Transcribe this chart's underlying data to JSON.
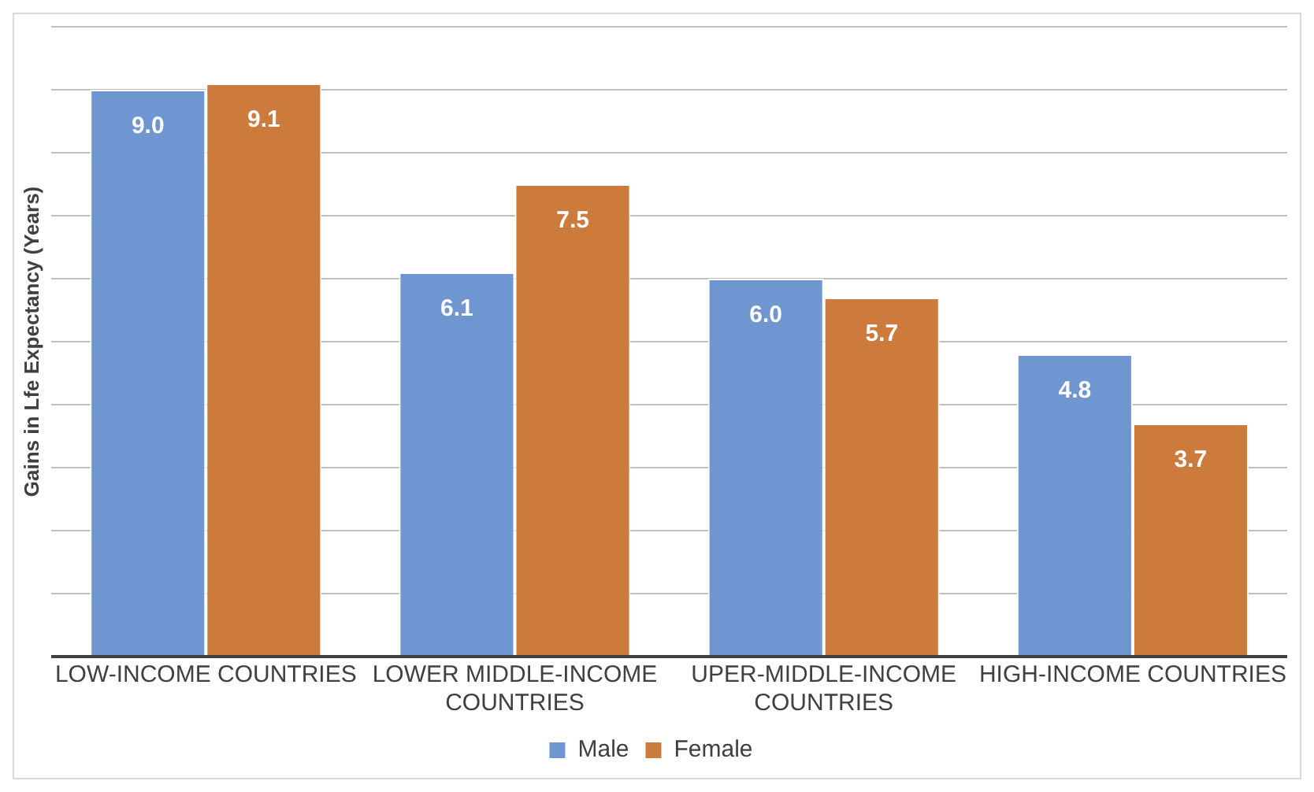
{
  "chart_data": {
    "type": "bar",
    "ylabel": "Gains in Lfe Expectancy (Years)",
    "categories": [
      "LOW-INCOME COUNTRIES",
      "LOWER MIDDLE-INCOME COUNTRIES",
      "UPER-MIDDLE-INCOME COUNTRIES",
      "HIGH-INCOME COUNTRIES"
    ],
    "series": [
      {
        "name": "Male",
        "color": "#7096d1",
        "values": [
          9.0,
          6.1,
          6.0,
          4.8
        ],
        "value_labels": [
          "9.0",
          "6.1",
          "6.0",
          "4.8"
        ]
      },
      {
        "name": "Female",
        "color": "#cd7b3c",
        "values": [
          9.1,
          7.5,
          5.7,
          3.7
        ],
        "value_labels": [
          "9.1",
          "7.5",
          "5.7",
          "3.7"
        ]
      }
    ],
    "ylim": [
      0,
      10
    ],
    "yticks": [
      {
        "value": 0,
        "label": null
      },
      {
        "value": 1,
        "label": null
      },
      {
        "value": 2,
        "label": null
      },
      {
        "value": 3,
        "label": null
      },
      {
        "value": 4,
        "label": null
      },
      {
        "value": 5,
        "label": null
      },
      {
        "value": 6,
        "label": null
      },
      {
        "value": 7,
        "label": null
      },
      {
        "value": 8,
        "label": null
      },
      {
        "value": 9,
        "label": null
      },
      {
        "value": 10,
        "label": null
      }
    ],
    "tick_labels": "x",
    "grid": "y",
    "legend": "bottom"
  }
}
